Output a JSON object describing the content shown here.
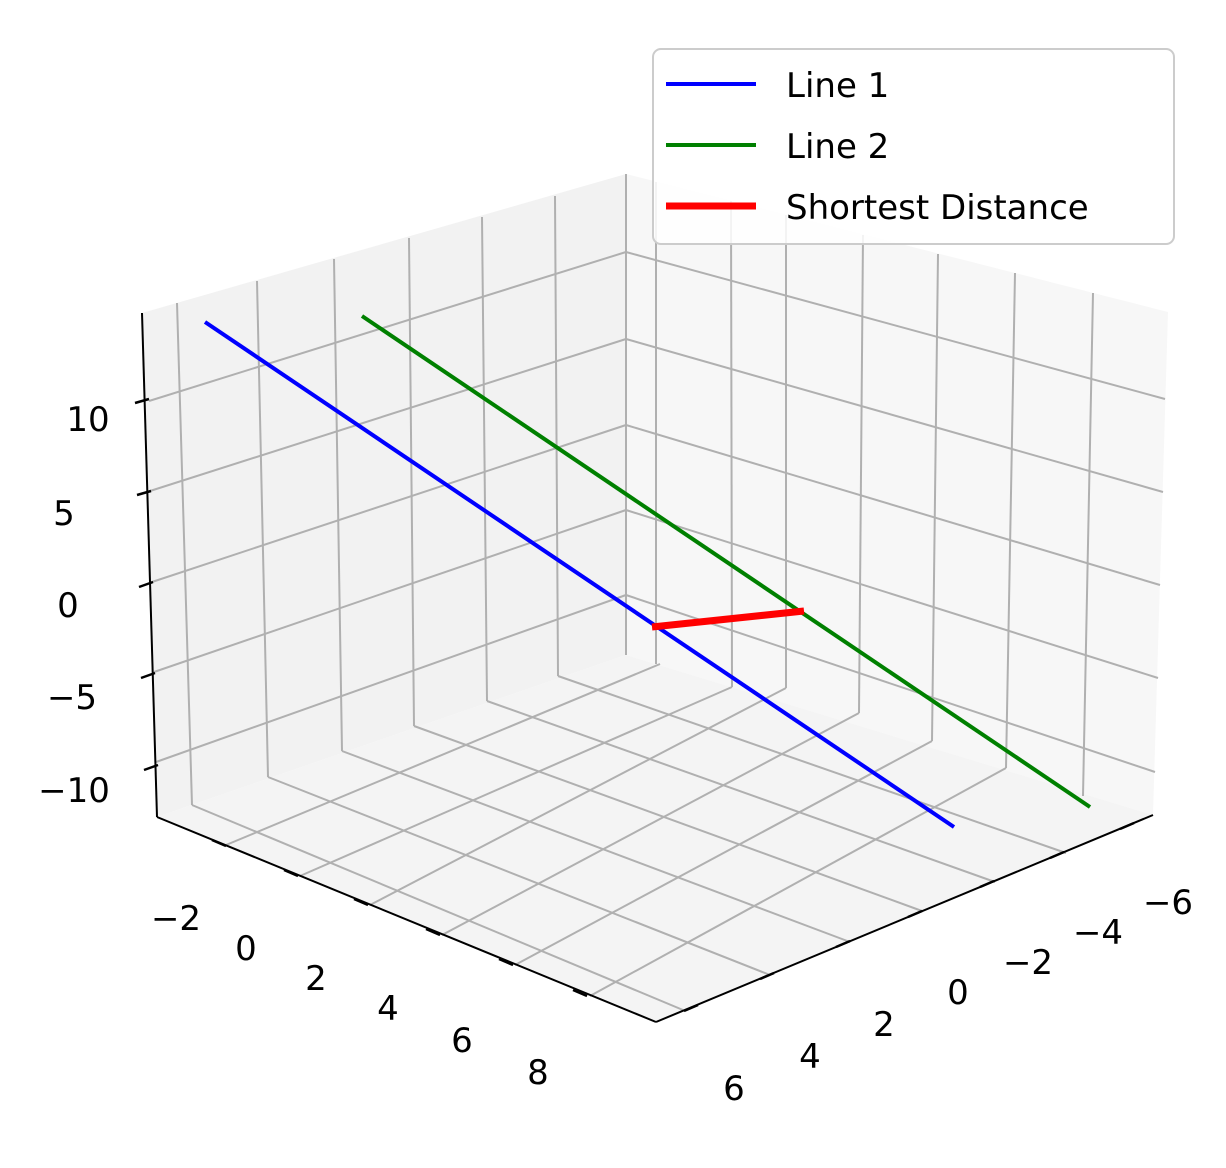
{
  "chart_data": {
    "type": "line",
    "projection": "3d",
    "title": "",
    "xlabel": "",
    "ylabel": "",
    "zlabel": "",
    "grid": true,
    "legend_position": "top-right",
    "x_ticks": [
      "−2",
      "0",
      "2",
      "4",
      "6",
      "8"
    ],
    "y_ticks": [
      "−6",
      "−4",
      "−2",
      "0",
      "2",
      "4",
      "6"
    ],
    "z_ticks": [
      "−10",
      "−5",
      "0",
      "5",
      "10"
    ],
    "series": [
      {
        "name": "Line 1",
        "color": "#0000ff",
        "label": "Line 1"
      },
      {
        "name": "Line 2",
        "color": "#008000",
        "label": "Line 2"
      },
      {
        "name": "Shortest Distance",
        "color": "#ff0000",
        "label": "Shortest Distance"
      }
    ]
  },
  "colors": {
    "pane_left": "#f2f2f2",
    "pane_back": "#f7f7f7",
    "pane_floor": "#f4f4f4"
  }
}
